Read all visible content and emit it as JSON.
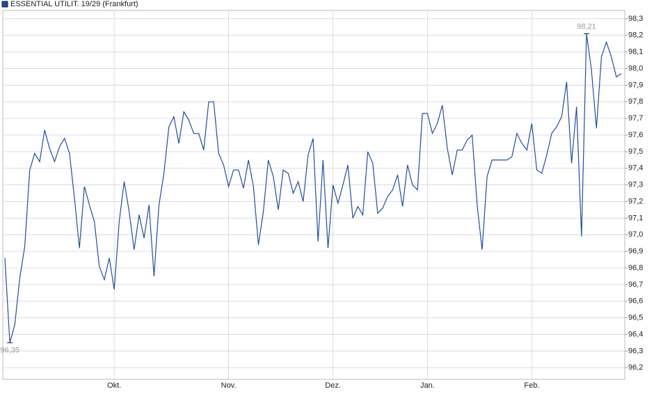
{
  "chart_data": {
    "type": "line",
    "series": [
      {
        "name": "ESSENTIAL UTILIT. 19/29 (Frankfurt)",
        "color": "#1f4e9c",
        "values": [
          96.86,
          96.35,
          96.46,
          96.74,
          96.93,
          97.39,
          97.49,
          97.44,
          97.63,
          97.52,
          97.44,
          97.53,
          97.58,
          97.49,
          97.22,
          96.92,
          97.29,
          97.18,
          97.08,
          96.81,
          96.73,
          96.86,
          96.67,
          97.08,
          97.32,
          97.14,
          96.91,
          97.12,
          96.98,
          97.18,
          96.75,
          97.18,
          97.37,
          97.65,
          97.71,
          97.55,
          97.74,
          97.69,
          97.61,
          97.61,
          97.51,
          97.8,
          97.8,
          97.49,
          97.42,
          97.29,
          97.39,
          97.39,
          97.28,
          97.45,
          97.29,
          96.94,
          97.14,
          97.45,
          97.35,
          97.15,
          97.39,
          97.37,
          97.25,
          97.32,
          97.2,
          97.48,
          97.58,
          96.96,
          97.45,
          96.92,
          97.3,
          97.19,
          97.3,
          97.42,
          97.1,
          97.17,
          97.12,
          97.5,
          97.43,
          97.13,
          97.16,
          97.23,
          97.27,
          97.36,
          97.17,
          97.42,
          97.3,
          97.27,
          97.73,
          97.73,
          97.61,
          97.67,
          97.78,
          97.52,
          97.36,
          97.51,
          97.51,
          97.57,
          97.6,
          97.18,
          96.91,
          97.35,
          97.45,
          97.45,
          97.45,
          97.45,
          97.47,
          97.61,
          97.55,
          97.51,
          97.67,
          97.39,
          97.37,
          97.48,
          97.61,
          97.65,
          97.71,
          97.92,
          97.43,
          97.77,
          96.99,
          98.21,
          97.99,
          97.64,
          98.07,
          98.16,
          98.07,
          97.95,
          97.97
        ]
      }
    ],
    "categories": [
      null,
      null,
      null,
      null,
      null,
      null,
      null,
      null,
      null,
      null,
      null,
      null,
      null,
      null,
      null,
      null,
      null,
      null,
      null,
      null,
      null,
      null,
      "Okt.",
      null,
      null,
      null,
      null,
      null,
      null,
      null,
      null,
      null,
      null,
      null,
      null,
      null,
      null,
      null,
      null,
      null,
      null,
      null,
      null,
      null,
      null,
      "Nov.",
      null,
      null,
      null,
      null,
      null,
      null,
      null,
      null,
      null,
      null,
      null,
      null,
      null,
      null,
      null,
      null,
      null,
      null,
      null,
      null,
      "Dez.",
      null,
      null,
      null,
      null,
      null,
      null,
      null,
      null,
      null,
      null,
      null,
      null,
      null,
      null,
      null,
      null,
      null,
      null,
      "Jan.",
      null,
      null,
      null,
      null,
      null,
      null,
      null,
      null,
      null,
      null,
      null,
      null,
      null,
      null,
      null,
      null,
      null,
      null,
      null,
      null,
      "Feb.",
      null,
      null,
      null,
      null,
      null,
      null,
      null,
      null,
      null,
      null,
      null,
      null,
      null,
      null,
      null,
      null,
      null,
      null
    ],
    "annotations": [
      {
        "value": 96.35,
        "label": "96,35"
      },
      {
        "value": 98.21,
        "label": "98,21"
      }
    ],
    "ylim": [
      96.13,
      98.35
    ],
    "yticks": [
      {
        "value": 96.2,
        "label": "96,2"
      },
      {
        "value": 96.3,
        "label": "96,3"
      },
      {
        "value": 96.4,
        "label": "96,4"
      },
      {
        "value": 96.5,
        "label": "96,5"
      },
      {
        "value": 96.6,
        "label": "96,6"
      },
      {
        "value": 96.7,
        "label": "96,7"
      },
      {
        "value": 96.8,
        "label": "96,8"
      },
      {
        "value": 96.9,
        "label": "96,9"
      },
      {
        "value": 97.0,
        "label": "97,0"
      },
      {
        "value": 97.1,
        "label": "97,1"
      },
      {
        "value": 97.2,
        "label": "97,2"
      },
      {
        "value": 97.3,
        "label": "97,3"
      },
      {
        "value": 97.4,
        "label": "97,4"
      },
      {
        "value": 97.5,
        "label": "97,5"
      },
      {
        "value": 97.6,
        "label": "97,6"
      },
      {
        "value": 97.7,
        "label": "97,7"
      },
      {
        "value": 97.8,
        "label": "97,8"
      },
      {
        "value": 97.9,
        "label": "97,9"
      },
      {
        "value": 98.0,
        "label": "98,0"
      },
      {
        "value": 98.1,
        "label": "98,1"
      },
      {
        "value": 98.2,
        "label": "98,2"
      },
      {
        "value": 98.3,
        "label": "98,3"
      }
    ],
    "grid": true,
    "legend": "top-left"
  }
}
